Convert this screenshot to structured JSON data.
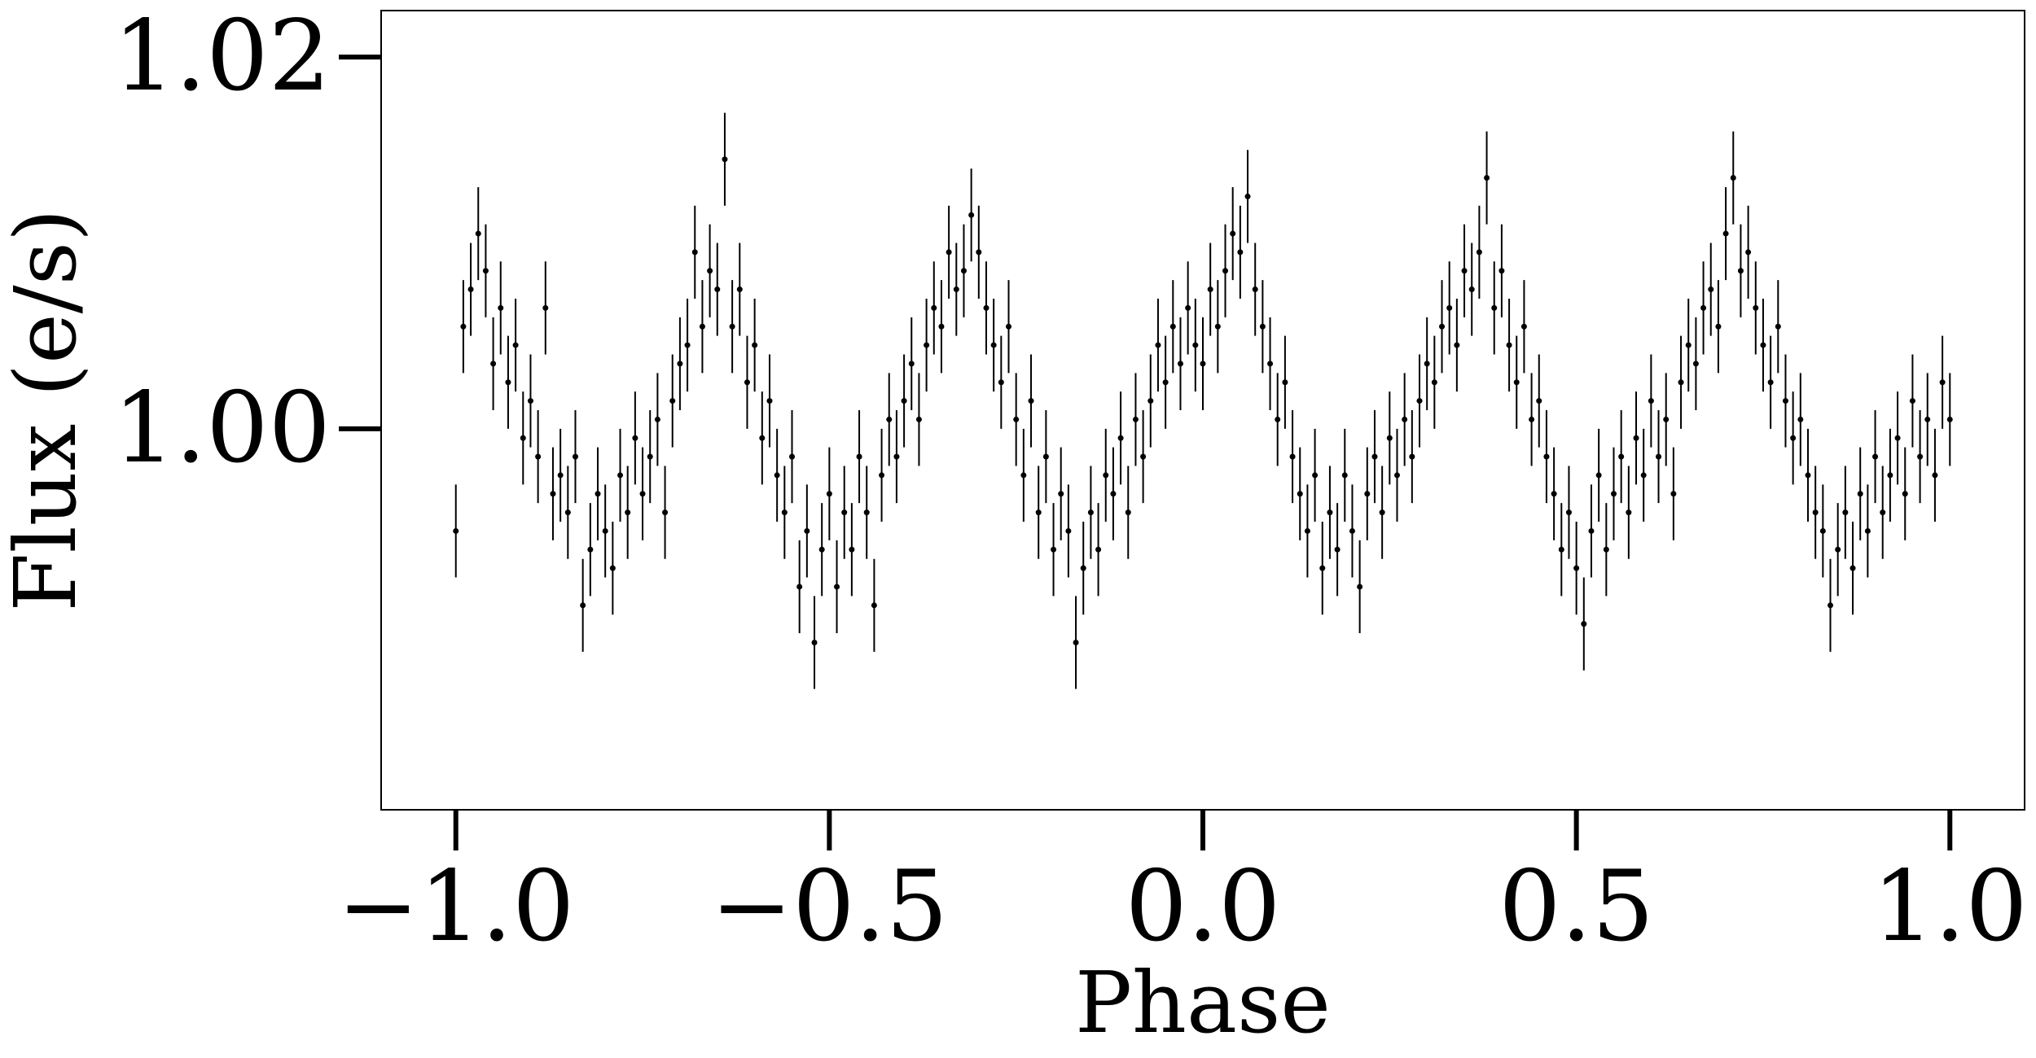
{
  "chart_data": {
    "type": "scatter",
    "title": "",
    "xlabel": "Phase",
    "ylabel": "Flux (e/s)",
    "xlim": [
      -1.1,
      1.1
    ],
    "ylim": [
      0.9795,
      1.0225
    ],
    "x_ticks": [
      -1.0,
      -0.5,
      0.0,
      0.5,
      1.0
    ],
    "x_tick_labels": [
      "−1.0",
      "−0.5",
      "0.0",
      "0.5",
      "1.0"
    ],
    "y_ticks": [
      1.0,
      1.02
    ],
    "y_tick_labels": [
      "1.00",
      "1.02"
    ],
    "grid": false,
    "legend": "none",
    "marker_color": "#000000",
    "errorbar_color": "#000000",
    "series": [
      {
        "errorbar": 0.0025,
        "points": [
          [
            -1.0,
            0.9945
          ],
          [
            -0.99,
            1.0055
          ],
          [
            -0.98,
            1.0075
          ],
          [
            -0.97,
            1.0105
          ],
          [
            -0.96,
            1.0085
          ],
          [
            -0.95,
            1.0035
          ],
          [
            -0.94,
            1.0065
          ],
          [
            -0.93,
            1.0025
          ],
          [
            -0.92,
            1.0045
          ],
          [
            -0.91,
            0.9995
          ],
          [
            -0.9,
            1.0015
          ],
          [
            -0.89,
            0.9985
          ],
          [
            -0.88,
            1.0065
          ],
          [
            -0.87,
            0.9965
          ],
          [
            -0.86,
            0.9975
          ],
          [
            -0.85,
            0.9955
          ],
          [
            -0.84,
            0.9985
          ],
          [
            -0.83,
            0.9905
          ],
          [
            -0.82,
            0.9935
          ],
          [
            -0.81,
            0.9965
          ],
          [
            -0.8,
            0.9945
          ],
          [
            -0.79,
            0.9925
          ],
          [
            -0.78,
            0.9975
          ],
          [
            -0.77,
            0.9955
          ],
          [
            -0.76,
            0.9995
          ],
          [
            -0.75,
            0.9965
          ],
          [
            -0.74,
            0.9985
          ],
          [
            -0.73,
            1.0005
          ],
          [
            -0.72,
            0.9955
          ],
          [
            -0.71,
            1.0015
          ],
          [
            -0.7,
            1.0035
          ],
          [
            -0.69,
            1.0045
          ],
          [
            -0.68,
            1.0095
          ],
          [
            -0.67,
            1.0055
          ],
          [
            -0.66,
            1.0085
          ],
          [
            -0.65,
            1.0075
          ],
          [
            -0.64,
            1.0145
          ],
          [
            -0.63,
            1.0055
          ],
          [
            -0.62,
            1.0075
          ],
          [
            -0.61,
            1.0025
          ],
          [
            -0.6,
            1.0045
          ],
          [
            -0.59,
            0.9995
          ],
          [
            -0.58,
            1.0015
          ],
          [
            -0.57,
            0.9975
          ],
          [
            -0.56,
            0.9955
          ],
          [
            -0.55,
            0.9985
          ],
          [
            -0.54,
            0.9915
          ],
          [
            -0.53,
            0.9945
          ],
          [
            -0.52,
            0.9885
          ],
          [
            -0.51,
            0.9935
          ],
          [
            -0.5,
            0.9965
          ],
          [
            -0.49,
            0.9915
          ],
          [
            -0.48,
            0.9955
          ],
          [
            -0.47,
            0.9935
          ],
          [
            -0.46,
            0.9985
          ],
          [
            -0.45,
            0.9955
          ],
          [
            -0.44,
            0.9905
          ],
          [
            -0.43,
            0.9975
          ],
          [
            -0.42,
            1.0005
          ],
          [
            -0.41,
            0.9985
          ],
          [
            -0.4,
            1.0015
          ],
          [
            -0.39,
            1.0035
          ],
          [
            -0.38,
            1.0005
          ],
          [
            -0.37,
            1.0045
          ],
          [
            -0.36,
            1.0065
          ],
          [
            -0.35,
            1.0055
          ],
          [
            -0.34,
            1.0095
          ],
          [
            -0.33,
            1.0075
          ],
          [
            -0.32,
            1.0085
          ],
          [
            -0.31,
            1.0115
          ],
          [
            -0.3,
            1.0095
          ],
          [
            -0.29,
            1.0065
          ],
          [
            -0.28,
            1.0045
          ],
          [
            -0.27,
            1.0025
          ],
          [
            -0.26,
            1.0055
          ],
          [
            -0.25,
            1.0005
          ],
          [
            -0.24,
            0.9975
          ],
          [
            -0.23,
            1.0015
          ],
          [
            -0.22,
            0.9955
          ],
          [
            -0.21,
            0.9985
          ],
          [
            -0.2,
            0.9935
          ],
          [
            -0.19,
            0.9965
          ],
          [
            -0.18,
            0.9945
          ],
          [
            -0.17,
            0.9885
          ],
          [
            -0.16,
            0.9925
          ],
          [
            -0.15,
            0.9955
          ],
          [
            -0.14,
            0.9935
          ],
          [
            -0.13,
            0.9975
          ],
          [
            -0.12,
            0.9965
          ],
          [
            -0.11,
            0.9995
          ],
          [
            -0.1,
            0.9955
          ],
          [
            -0.09,
            1.0005
          ],
          [
            -0.08,
            0.9985
          ],
          [
            -0.07,
            1.0015
          ],
          [
            -0.06,
            1.0045
          ],
          [
            -0.05,
            1.0025
          ],
          [
            -0.04,
            1.0055
          ],
          [
            -0.03,
            1.0035
          ],
          [
            -0.02,
            1.0065
          ],
          [
            -0.01,
            1.0045
          ],
          [
            0.0,
            1.0035
          ],
          [
            0.01,
            1.0075
          ],
          [
            0.02,
            1.0055
          ],
          [
            0.03,
            1.0085
          ],
          [
            0.04,
            1.0105
          ],
          [
            0.05,
            1.0095
          ],
          [
            0.06,
            1.0125
          ],
          [
            0.07,
            1.0075
          ],
          [
            0.08,
            1.0055
          ],
          [
            0.09,
            1.0035
          ],
          [
            0.1,
            1.0005
          ],
          [
            0.11,
            1.0025
          ],
          [
            0.12,
            0.9985
          ],
          [
            0.13,
            0.9965
          ],
          [
            0.14,
            0.9945
          ],
          [
            0.15,
            0.9975
          ],
          [
            0.16,
            0.9925
          ],
          [
            0.17,
            0.9955
          ],
          [
            0.18,
            0.9935
          ],
          [
            0.19,
            0.9975
          ],
          [
            0.2,
            0.9945
          ],
          [
            0.21,
            0.9915
          ],
          [
            0.22,
            0.9965
          ],
          [
            0.23,
            0.9985
          ],
          [
            0.24,
            0.9955
          ],
          [
            0.25,
            0.9995
          ],
          [
            0.26,
            0.9975
          ],
          [
            0.27,
            1.0005
          ],
          [
            0.28,
            0.9985
          ],
          [
            0.29,
            1.0015
          ],
          [
            0.3,
            1.0035
          ],
          [
            0.31,
            1.0025
          ],
          [
            0.32,
            1.0055
          ],
          [
            0.33,
            1.0065
          ],
          [
            0.34,
            1.0045
          ],
          [
            0.35,
            1.0085
          ],
          [
            0.36,
            1.0075
          ],
          [
            0.37,
            1.0095
          ],
          [
            0.38,
            1.0135
          ],
          [
            0.39,
            1.0065
          ],
          [
            0.4,
            1.0085
          ],
          [
            0.41,
            1.0045
          ],
          [
            0.42,
            1.0025
          ],
          [
            0.43,
            1.0055
          ],
          [
            0.44,
            1.0005
          ],
          [
            0.45,
            1.0015
          ],
          [
            0.46,
            0.9985
          ],
          [
            0.47,
            0.9965
          ],
          [
            0.48,
            0.9935
          ],
          [
            0.49,
            0.9955
          ],
          [
            0.5,
            0.9925
          ],
          [
            0.51,
            0.9895
          ],
          [
            0.52,
            0.9945
          ],
          [
            0.53,
            0.9975
          ],
          [
            0.54,
            0.9935
          ],
          [
            0.55,
            0.9965
          ],
          [
            0.56,
            0.9985
          ],
          [
            0.57,
            0.9955
          ],
          [
            0.58,
            0.9995
          ],
          [
            0.59,
            0.9975
          ],
          [
            0.6,
            1.0015
          ],
          [
            0.61,
            0.9985
          ],
          [
            0.62,
            1.0005
          ],
          [
            0.63,
            0.9965
          ],
          [
            0.64,
            1.0025
          ],
          [
            0.65,
            1.0045
          ],
          [
            0.66,
            1.0035
          ],
          [
            0.67,
            1.0065
          ],
          [
            0.68,
            1.0075
          ],
          [
            0.69,
            1.0055
          ],
          [
            0.7,
            1.0105
          ],
          [
            0.71,
            1.0135
          ],
          [
            0.72,
            1.0085
          ],
          [
            0.73,
            1.0095
          ],
          [
            0.74,
            1.0065
          ],
          [
            0.75,
            1.0045
          ],
          [
            0.76,
            1.0025
          ],
          [
            0.77,
            1.0055
          ],
          [
            0.78,
            1.0015
          ],
          [
            0.79,
            0.9995
          ],
          [
            0.8,
            1.0005
          ],
          [
            0.81,
            0.9975
          ],
          [
            0.82,
            0.9955
          ],
          [
            0.83,
            0.9945
          ],
          [
            0.84,
            0.9905
          ],
          [
            0.85,
            0.9935
          ],
          [
            0.86,
            0.9955
          ],
          [
            0.87,
            0.9925
          ],
          [
            0.88,
            0.9965
          ],
          [
            0.89,
            0.9945
          ],
          [
            0.9,
            0.9985
          ],
          [
            0.91,
            0.9955
          ],
          [
            0.92,
            0.9975
          ],
          [
            0.93,
            0.9995
          ],
          [
            0.94,
            0.9965
          ],
          [
            0.95,
            1.0015
          ],
          [
            0.96,
            0.9985
          ],
          [
            0.97,
            1.0005
          ],
          [
            0.98,
            0.9975
          ],
          [
            0.99,
            1.0025
          ],
          [
            1.0,
            1.0005
          ]
        ]
      }
    ]
  }
}
